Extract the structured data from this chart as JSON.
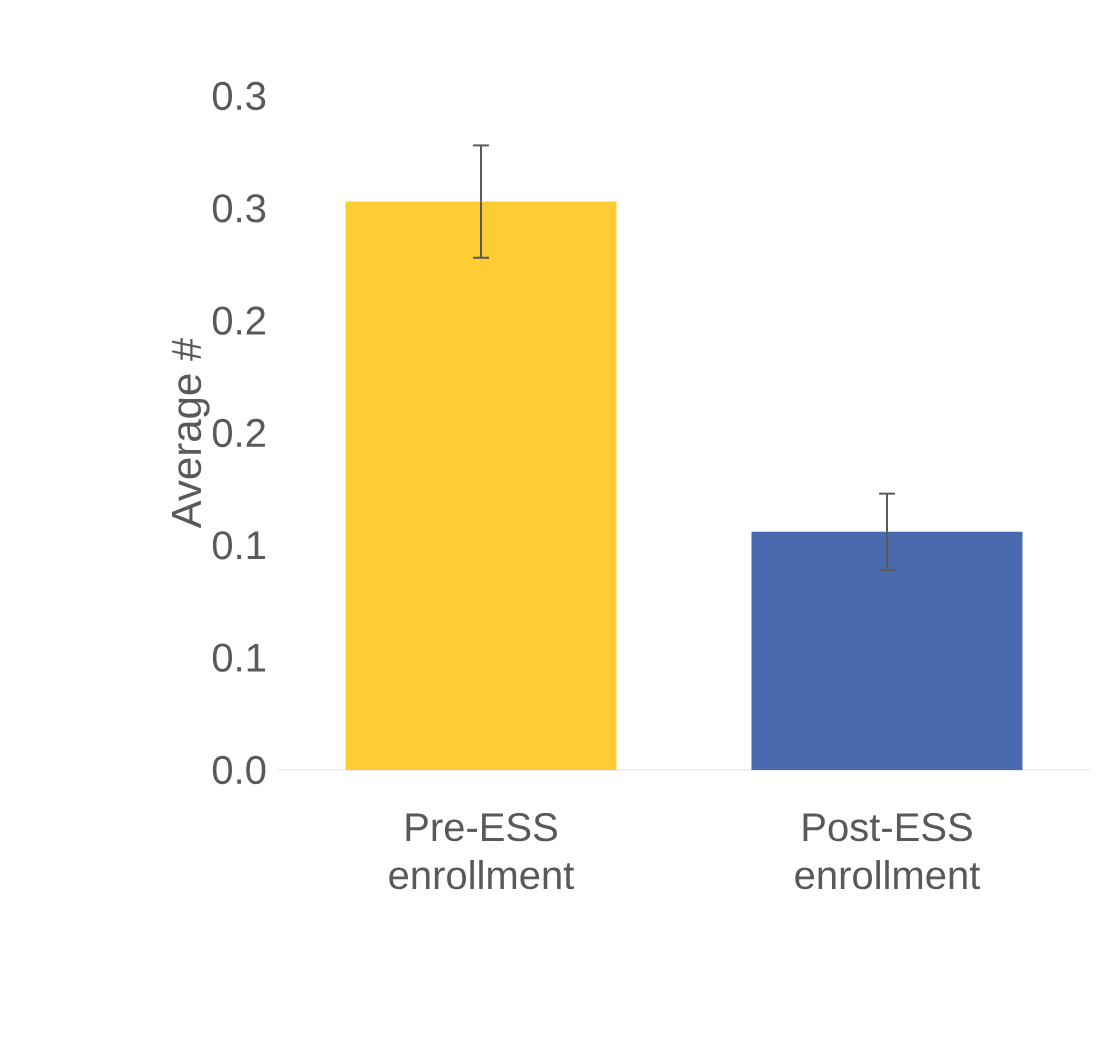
{
  "chart_data": {
    "type": "bar",
    "ylabel": "Average #",
    "categories": [
      "Pre-ESS enrollment",
      "Post-ESS enrollment"
    ],
    "values": [
      0.253,
      0.106
    ],
    "errors": [
      0.025,
      0.017
    ],
    "colors": [
      "#ffcd33",
      "#4a6aaf"
    ],
    "ylim": [
      0,
      0.3
    ],
    "yticks": [
      {
        "value": 0,
        "label": "0.0"
      },
      {
        "value": 0.05,
        "label": "0.1"
      },
      {
        "value": 0.1,
        "label": "0.1"
      },
      {
        "value": 0.15,
        "label": "0.2"
      },
      {
        "value": 0.2,
        "label": "0.2"
      },
      {
        "value": 0.25,
        "label": "0.3"
      },
      {
        "value": 0.3,
        "label": "0.3"
      }
    ]
  }
}
